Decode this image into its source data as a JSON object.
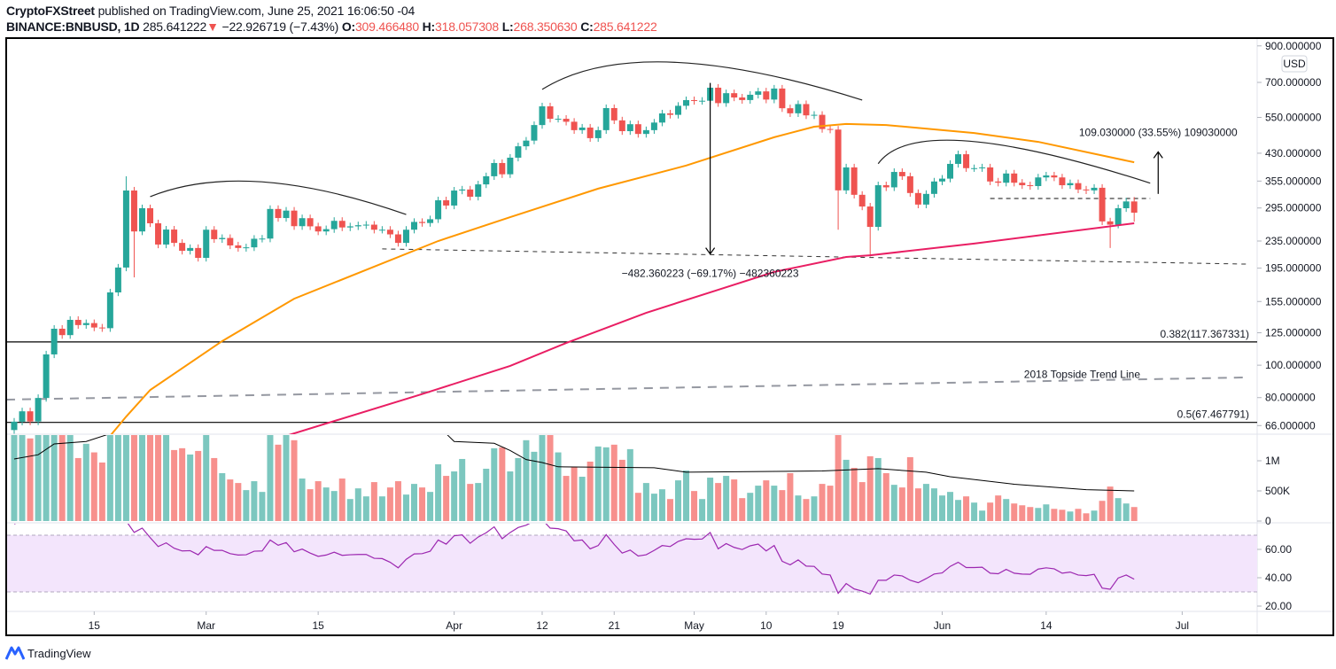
{
  "header": {
    "publisher": "CryptoFXStreet",
    "published_text": "published on TradingView.com, June 25, 2021 16:06:50 -04",
    "symbol": "BINANCE:BNBUSD, 1D",
    "last": "285.641222",
    "change": "−22.926719 (−7.43%)",
    "o_label": "O:",
    "o": "309.466480",
    "h_label": "H:",
    "h": "318.057308",
    "l_label": "L:",
    "l": "268.350630",
    "c_label": "C:",
    "c": "285.641222",
    "down_icon": "triangle-down-icon"
  },
  "footer": {
    "brand": "TradingView"
  },
  "colors": {
    "up": "#26a69a",
    "down": "#ef5350",
    "vol_up": "#7cc7bf",
    "vol_down": "#f7908d",
    "ma_fast": "#ff9800",
    "ma_slow": "#e91e63",
    "rsi": "#9c27b0",
    "rsi_band": "#f3e5fc"
  },
  "chart_data": {
    "type": "candlestick",
    "price_scale": "log",
    "currency_badge": "USD",
    "y_ticks": [
      {
        "label": "900.000000",
        "value": 900
      },
      {
        "label": "700.000000",
        "value": 700
      },
      {
        "label": "550.000000",
        "value": 550
      },
      {
        "label": "430.000000",
        "value": 430
      },
      {
        "label": "355.000000",
        "value": 355
      },
      {
        "label": "295.000000",
        "value": 295
      },
      {
        "label": "235.000000",
        "value": 235
      },
      {
        "label": "195.000000",
        "value": 195
      },
      {
        "label": "155.000000",
        "value": 155
      },
      {
        "label": "125.000000",
        "value": 125
      },
      {
        "label": "100.000000",
        "value": 100
      },
      {
        "label": "80.000000",
        "value": 80
      },
      {
        "label": "66.000000",
        "value": 66
      }
    ],
    "volume_ticks": [
      {
        "label": "1M",
        "value": 1000
      },
      {
        "label": "500K",
        "value": 500
      },
      {
        "label": "0",
        "value": 0
      }
    ],
    "rsi_ticks": [
      {
        "label": "60.00",
        "value": 60
      },
      {
        "label": "40.00",
        "value": 40
      },
      {
        "label": "20.00",
        "value": 20
      }
    ],
    "rsi_band": [
      30,
      70
    ],
    "x_ticks": [
      {
        "label": "15",
        "date": "2021-02-15"
      },
      {
        "label": "Mar",
        "date": "2021-03-01"
      },
      {
        "label": "15",
        "date": "2021-03-15"
      },
      {
        "label": "Apr",
        "date": "2021-04-01"
      },
      {
        "label": "12",
        "date": "2021-04-12"
      },
      {
        "label": "21",
        "date": "2021-04-21"
      },
      {
        "label": "May",
        "date": "2021-05-01"
      },
      {
        "label": "10",
        "date": "2021-05-10"
      },
      {
        "label": "19",
        "date": "2021-05-19"
      },
      {
        "label": "Jun",
        "date": "2021-06-01"
      },
      {
        "label": "14",
        "date": "2021-06-14"
      },
      {
        "label": "Jul",
        "date": "2021-07-01"
      }
    ],
    "first_candle_open": 64,
    "columns": [
      "date",
      "close",
      "volume_k",
      "rsi"
    ],
    "rows": [
      [
        "2021-02-05",
        67.8,
        1500,
        78
      ],
      [
        "2021-02-06",
        72.8,
        1500,
        80
      ],
      [
        "2021-02-07",
        67.9,
        1371,
        78.5
      ],
      [
        "2021-02-08",
        79.8,
        1500,
        80
      ],
      [
        "2021-02-09",
        107.7,
        1500,
        80
      ],
      [
        "2021-02-10",
        128.5,
        1500,
        80
      ],
      [
        "2021-02-11",
        123,
        1500,
        80
      ],
      [
        "2021-02-12",
        136.6,
        1500,
        80
      ],
      [
        "2021-02-13",
        131.8,
        1045,
        80
      ],
      [
        "2021-02-14",
        133.6,
        1282,
        80
      ],
      [
        "2021-02-15",
        129.6,
        1139,
        80
      ],
      [
        "2021-02-16",
        129,
        971,
        80
      ],
      [
        "2021-02-17",
        165,
        1500,
        80
      ],
      [
        "2021-02-18",
        195.8,
        1500,
        80
      ],
      [
        "2021-02-19",
        332.7,
        1500,
        80
      ],
      [
        "2021-02-20",
        251,
        1500,
        72
      ],
      [
        "2021-02-21",
        294.5,
        1500,
        75
      ],
      [
        "2021-02-22",
        265.5,
        1500,
        68.3
      ],
      [
        "2021-02-23",
        229.4,
        1500,
        62
      ],
      [
        "2021-02-24",
        254.3,
        1500,
        64.6
      ],
      [
        "2021-02-25",
        232,
        1178,
        60.8
      ],
      [
        "2021-02-26",
        219.7,
        1208,
        58.9
      ],
      [
        "2021-02-27",
        224,
        1104,
        59.1
      ],
      [
        "2021-02-28",
        209.3,
        1163,
        56.2
      ],
      [
        "2021-03-01",
        254,
        1500,
        62
      ],
      [
        "2021-03-02",
        238,
        1045,
        59.3
      ],
      [
        "2021-03-03",
        240,
        794,
        59.3
      ],
      [
        "2021-03-04",
        228,
        690,
        57
      ],
      [
        "2021-03-05",
        224,
        631,
        56
      ],
      [
        "2021-03-06",
        225,
        513,
        56.2
      ],
      [
        "2021-03-07",
        238.7,
        661,
        58.7
      ],
      [
        "2021-03-08",
        239,
        483,
        58.9
      ],
      [
        "2021-03-09",
        293,
        1500,
        66.6
      ],
      [
        "2021-03-10",
        275.3,
        1267,
        62.9
      ],
      [
        "2021-03-11",
        289.7,
        1500,
        64.8
      ],
      [
        "2021-03-12",
        260.3,
        1341,
        58.3
      ],
      [
        "2021-03-13",
        275,
        705,
        60.2
      ],
      [
        "2021-03-14",
        260,
        528,
        57.4
      ],
      [
        "2021-03-15",
        251,
        661,
        55.1
      ],
      [
        "2021-03-16",
        255,
        557,
        56
      ],
      [
        "2021-03-17",
        270,
        498,
        58
      ],
      [
        "2021-03-18",
        258,
        705,
        55.8
      ],
      [
        "2021-03-19",
        260,
        365,
        56.2
      ],
      [
        "2021-03-20",
        262,
        542,
        56.4
      ],
      [
        "2021-03-21",
        263,
        409,
        56.4
      ],
      [
        "2021-03-22",
        254,
        646,
        53.7
      ],
      [
        "2021-03-23",
        254,
        409,
        53.5
      ],
      [
        "2021-03-24",
        246,
        557,
        50.9
      ],
      [
        "2021-03-25",
        232,
        661,
        47
      ],
      [
        "2021-03-26",
        254,
        439,
        53
      ],
      [
        "2021-03-27",
        268,
        616,
        56.8
      ],
      [
        "2021-03-28",
        266,
        557,
        57
      ],
      [
        "2021-03-29",
        273,
        483,
        58.7
      ],
      [
        "2021-03-30",
        311,
        942,
        66.6
      ],
      [
        "2021-03-31",
        300,
        749,
        63.7
      ],
      [
        "2021-04-01",
        332.6,
        823,
        69.6
      ],
      [
        "2021-04-02",
        335,
        1030,
        70.2
      ],
      [
        "2021-04-03",
        318.7,
        616,
        64.3
      ],
      [
        "2021-04-04",
        347,
        631,
        68.7
      ],
      [
        "2021-04-05",
        367,
        868,
        71.7
      ],
      [
        "2021-04-06",
        402,
        1208,
        75.9
      ],
      [
        "2021-04-07",
        372,
        1223,
        67.5
      ],
      [
        "2021-04-08",
        417,
        823,
        71.9
      ],
      [
        "2021-04-09",
        451,
        1045,
        75.4
      ],
      [
        "2021-04-10",
        469,
        1341,
        77.1
      ],
      [
        "2021-04-11",
        522,
        1149,
        80
      ],
      [
        "2021-04-12",
        593.7,
        1500,
        81
      ],
      [
        "2021-04-13",
        545,
        1500,
        75
      ],
      [
        "2021-04-14",
        545,
        1139,
        74.6
      ],
      [
        "2021-04-15",
        534,
        749,
        73
      ],
      [
        "2021-04-16",
        504,
        897,
        66
      ],
      [
        "2021-04-17",
        513,
        735,
        66.6
      ],
      [
        "2021-04-18",
        477,
        986,
        60.4
      ],
      [
        "2021-04-19",
        504,
        1237,
        62.7
      ],
      [
        "2021-04-20",
        586.6,
        1223,
        70.4
      ],
      [
        "2021-04-21",
        539,
        1267,
        63.5
      ],
      [
        "2021-04-22",
        500.5,
        1016,
        57.4
      ],
      [
        "2021-04-23",
        525,
        1193,
        59.5
      ],
      [
        "2021-04-24",
        491,
        468,
        55.3
      ],
      [
        "2021-04-25",
        504,
        631,
        56.2
      ],
      [
        "2021-04-26",
        531,
        454,
        59.3
      ],
      [
        "2021-04-27",
        565.5,
        527,
        62.7
      ],
      [
        "2021-04-28",
        560,
        365,
        62
      ],
      [
        "2021-04-29",
        596,
        675,
        65.6
      ],
      [
        "2021-04-30",
        619.6,
        838,
        67.5
      ],
      [
        "2021-05-01",
        616,
        498,
        67.1
      ],
      [
        "2021-05-02",
        617,
        365,
        67.3
      ],
      [
        "2021-05-03",
        675,
        720,
        71.9
      ],
      [
        "2021-05-04",
        607,
        631,
        60.4
      ],
      [
        "2021-05-05",
        650,
        749,
        64.1
      ],
      [
        "2021-05-06",
        631,
        690,
        61.4
      ],
      [
        "2021-05-07",
        620,
        380,
        59.9
      ],
      [
        "2021-05-08",
        643,
        468,
        62.5
      ],
      [
        "2021-05-09",
        658,
        587,
        63.7
      ],
      [
        "2021-05-10",
        622,
        675,
        58.9
      ],
      [
        "2021-05-11",
        671,
        587,
        62.7
      ],
      [
        "2021-05-12",
        586,
        513,
        51.6
      ],
      [
        "2021-05-13",
        566,
        794,
        49.1
      ],
      [
        "2021-05-14",
        603,
        424,
        52.6
      ],
      [
        "2021-05-15",
        558,
        365,
        48.2
      ],
      [
        "2021-05-16",
        560,
        409,
        48
      ],
      [
        "2021-05-17",
        508,
        616,
        42.6
      ],
      [
        "2021-05-18",
        506,
        587,
        41.9
      ],
      [
        "2021-05-19",
        333,
        1500,
        29
      ],
      [
        "2021-05-20",
        390,
        1016,
        35.9
      ],
      [
        "2021-05-21",
        323,
        882,
        32.1
      ],
      [
        "2021-05-22",
        298,
        646,
        30.6
      ],
      [
        "2021-05-23",
        259,
        1075,
        28.5
      ],
      [
        "2021-05-24",
        345,
        1045,
        38.2
      ],
      [
        "2021-05-25",
        340,
        794,
        38.2
      ],
      [
        "2021-05-26",
        378,
        601,
        41.9
      ],
      [
        "2021-05-27",
        367,
        557,
        41.3
      ],
      [
        "2021-05-28",
        327,
        1060,
        38.2
      ],
      [
        "2021-05-29",
        302,
        542,
        36.5
      ],
      [
        "2021-05-30",
        325,
        616,
        39.4
      ],
      [
        "2021-05-31",
        354,
        542,
        42.6
      ],
      [
        "2021-06-01",
        361,
        424,
        43.4
      ],
      [
        "2021-06-02",
        399.6,
        483,
        48
      ],
      [
        "2021-06-03",
        427,
        350,
        50.9
      ],
      [
        "2021-06-04",
        388,
        409,
        47.2
      ],
      [
        "2021-06-05",
        388,
        306,
        47.2
      ],
      [
        "2021-06-06",
        390,
        173,
        47.4
      ],
      [
        "2021-06-07",
        354,
        306,
        43.2
      ],
      [
        "2021-06-08",
        351,
        424,
        42.8
      ],
      [
        "2021-06-09",
        374,
        365,
        45.9
      ],
      [
        "2021-06-10",
        351,
        291,
        43.2
      ],
      [
        "2021-06-11",
        345,
        261,
        42.6
      ],
      [
        "2021-06-12",
        343,
        232,
        42.4
      ],
      [
        "2021-06-13",
        364,
        217,
        46.1
      ],
      [
        "2021-06-14",
        369,
        276,
        47
      ],
      [
        "2021-06-15",
        364,
        202,
        46.3
      ],
      [
        "2021-06-16",
        345,
        187,
        43.2
      ],
      [
        "2021-06-17",
        350,
        158,
        44
      ],
      [
        "2021-06-18",
        335,
        202,
        41.9
      ],
      [
        "2021-06-19",
        333,
        128,
        41.5
      ],
      [
        "2021-06-20",
        339,
        173,
        42.4
      ],
      [
        "2021-06-21",
        269,
        335,
        32.7
      ],
      [
        "2021-06-22",
        263,
        572,
        31.9
      ],
      [
        "2021-06-23",
        294.5,
        380,
        39.8
      ],
      [
        "2021-06-24",
        308.57,
        291,
        41.9
      ],
      [
        "2021-06-25",
        285.641222,
        232,
        39
      ]
    ],
    "wick_extremes": [
      [
        "2021-02-19",
        367,
        210
      ],
      [
        "2021-02-20",
        340,
        183
      ],
      [
        "2021-05-03",
        697.4,
        600
      ],
      [
        "2021-05-19",
        510,
        254
      ],
      [
        "2021-05-23",
        300,
        211
      ],
      [
        "2021-06-22",
        275,
        224
      ],
      [
        "2021-06-25",
        318.057308,
        268.35063
      ]
    ],
    "ma_fast": [
      [
        "2021-02-17",
        61.5
      ],
      [
        "2021-02-19",
        70.2
      ],
      [
        "2021-02-22",
        84.3
      ],
      [
        "2021-03-03",
        118
      ],
      [
        "2021-03-12",
        158
      ],
      [
        "2021-03-30",
        235
      ],
      [
        "2021-04-08",
        277
      ],
      [
        "2021-04-19",
        337
      ],
      [
        "2021-04-30",
        395
      ],
      [
        "2021-05-11",
        480
      ],
      [
        "2021-05-16",
        516
      ],
      [
        "2021-05-20",
        526
      ],
      [
        "2021-05-25",
        522
      ],
      [
        "2021-06-05",
        494
      ],
      [
        "2021-06-13",
        465
      ],
      [
        "2021-06-25",
        404
      ]
    ],
    "ma_slow": [
      [
        "2021-03-11",
        61.5
      ],
      [
        "2021-03-28",
        82
      ],
      [
        "2021-04-08",
        99.5
      ],
      [
        "2021-04-15",
        116.5
      ],
      [
        "2021-04-25",
        143.4
      ],
      [
        "2021-05-04",
        168
      ],
      [
        "2021-05-11",
        190
      ],
      [
        "2021-05-20",
        210.6
      ],
      [
        "2021-05-23",
        213
      ],
      [
        "2021-06-05",
        231
      ],
      [
        "2021-06-25",
        265.5
      ]
    ],
    "volume_ma_k": [
      [
        "2021-02-05",
        1030
      ],
      [
        "2021-02-08",
        1100
      ],
      [
        "2021-02-10",
        1280
      ],
      [
        "2021-02-14",
        1320
      ],
      [
        "2021-02-17",
        1450
      ],
      [
        "2021-03-31",
        1450
      ],
      [
        "2021-04-01",
        1320
      ],
      [
        "2021-04-06",
        1290
      ],
      [
        "2021-04-08",
        1170
      ],
      [
        "2021-04-10",
        1020
      ],
      [
        "2021-04-12",
        970
      ],
      [
        "2021-04-14",
        900
      ],
      [
        "2021-04-26",
        885
      ],
      [
        "2021-04-30",
        810
      ],
      [
        "2021-05-17",
        830
      ],
      [
        "2021-05-24",
        870
      ],
      [
        "2021-05-30",
        810
      ],
      [
        "2021-06-02",
        735
      ],
      [
        "2021-06-10",
        610
      ],
      [
        "2021-06-19",
        520
      ],
      [
        "2021-06-25",
        500
      ]
    ],
    "annotations": {
      "fib_382": {
        "label": "0.382(117.367331)",
        "price": 117.367331
      },
      "fib_5": {
        "label": "0.5(67.467791)",
        "price": 67.467791
      },
      "topside_line": {
        "label": "2018 Topside Trend Line",
        "from": [
          "2021-02-04",
          78.9
        ],
        "to": [
          "2021-07-09",
          91.9
        ]
      },
      "neckline": {
        "from": [
          "2021-03-23",
          222.6
        ],
        "to": [
          "2021-07-09",
          200.5
        ]
      },
      "right_neckline": {
        "from": [
          "2021-06-07",
          315
        ],
        "to": [
          "2021-06-27",
          315
        ]
      },
      "drop_measure": {
        "label": "−482.360223 (−69.17%) −482360223",
        "date": "2021-05-03",
        "from": 697.4,
        "to": 215.0
      },
      "target_measure": {
        "label": "109.030000 (33.55%) 109030000",
        "date": "2021-06-28",
        "from": 325,
        "to": 434
      },
      "arcs": [
        [
          [
            "2021-02-22",
            319
          ],
          [
            "2021-03-08",
            353
          ],
          [
            "2021-03-26",
            282
          ]
        ],
        [
          [
            "2021-04-12",
            667
          ],
          [
            "2021-04-28",
            805
          ],
          [
            "2021-05-22",
            620
          ]
        ],
        [
          [
            "2021-05-24",
            400
          ],
          [
            "2021-06-04",
            468
          ],
          [
            "2021-06-27",
            350
          ]
        ]
      ]
    }
  }
}
